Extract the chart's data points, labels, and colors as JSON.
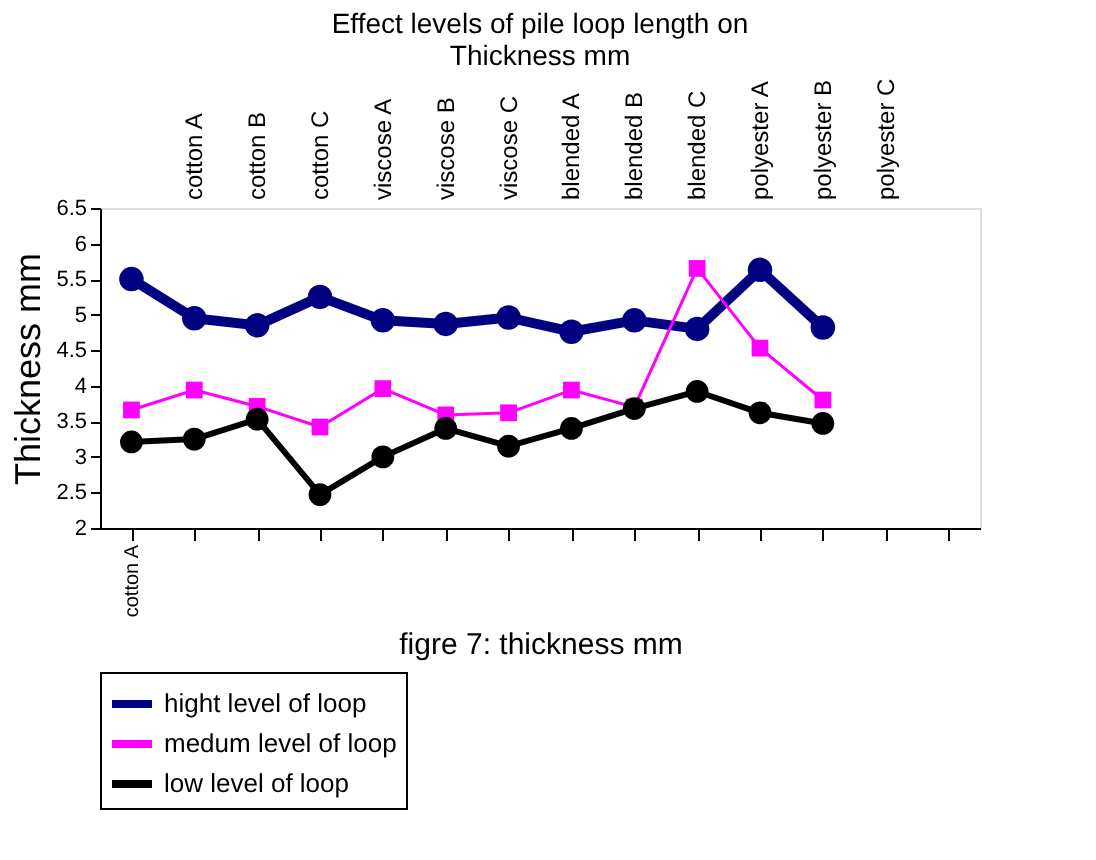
{
  "chart_data": {
    "type": "line",
    "title": [
      "Effect  levels of pile loop length on",
      "Thickness mm"
    ],
    "xlabel": "figre 7:  thickness mm",
    "ylabel": "Thickness mm",
    "categories": [
      "cotton A",
      null,
      null,
      null,
      null,
      null,
      null,
      null,
      null,
      null,
      null,
      null,
      null,
      null
    ],
    "annotations": [
      "cotton A",
      "cotton B",
      "cotton C",
      "viscose A",
      "viscose B",
      "viscose C",
      "blended A",
      "blended B",
      "blended C",
      "polyester A",
      "polyester B",
      "polyester C"
    ],
    "ylim": [
      2,
      6.5
    ],
    "yticks": [
      2,
      2.5,
      3,
      3.5,
      4,
      4.5,
      5,
      5.5,
      6,
      6.5
    ],
    "grid": false,
    "legend": "bottom",
    "series": [
      {
        "name": "hight level of loop",
        "color": "#000080",
        "marker": "circle",
        "values": [
          5.5,
          4.95,
          4.85,
          5.25,
          4.92,
          4.87,
          4.96,
          4.76,
          4.92,
          4.8,
          5.63,
          4.82,
          null,
          null
        ]
      },
      {
        "name": "medum level of loop",
        "color": "#ff00ff",
        "marker": "square",
        "values": [
          3.66,
          3.94,
          3.71,
          3.42,
          3.96,
          3.59,
          3.62,
          3.94,
          3.7,
          5.65,
          4.53,
          3.8,
          null,
          null
        ]
      },
      {
        "name": "low level of loop",
        "color": "#000000",
        "marker": "circle",
        "values": [
          3.21,
          3.25,
          3.53,
          2.47,
          3.0,
          3.4,
          3.15,
          3.4,
          3.68,
          3.92,
          3.62,
          3.47,
          null,
          null
        ]
      }
    ]
  }
}
